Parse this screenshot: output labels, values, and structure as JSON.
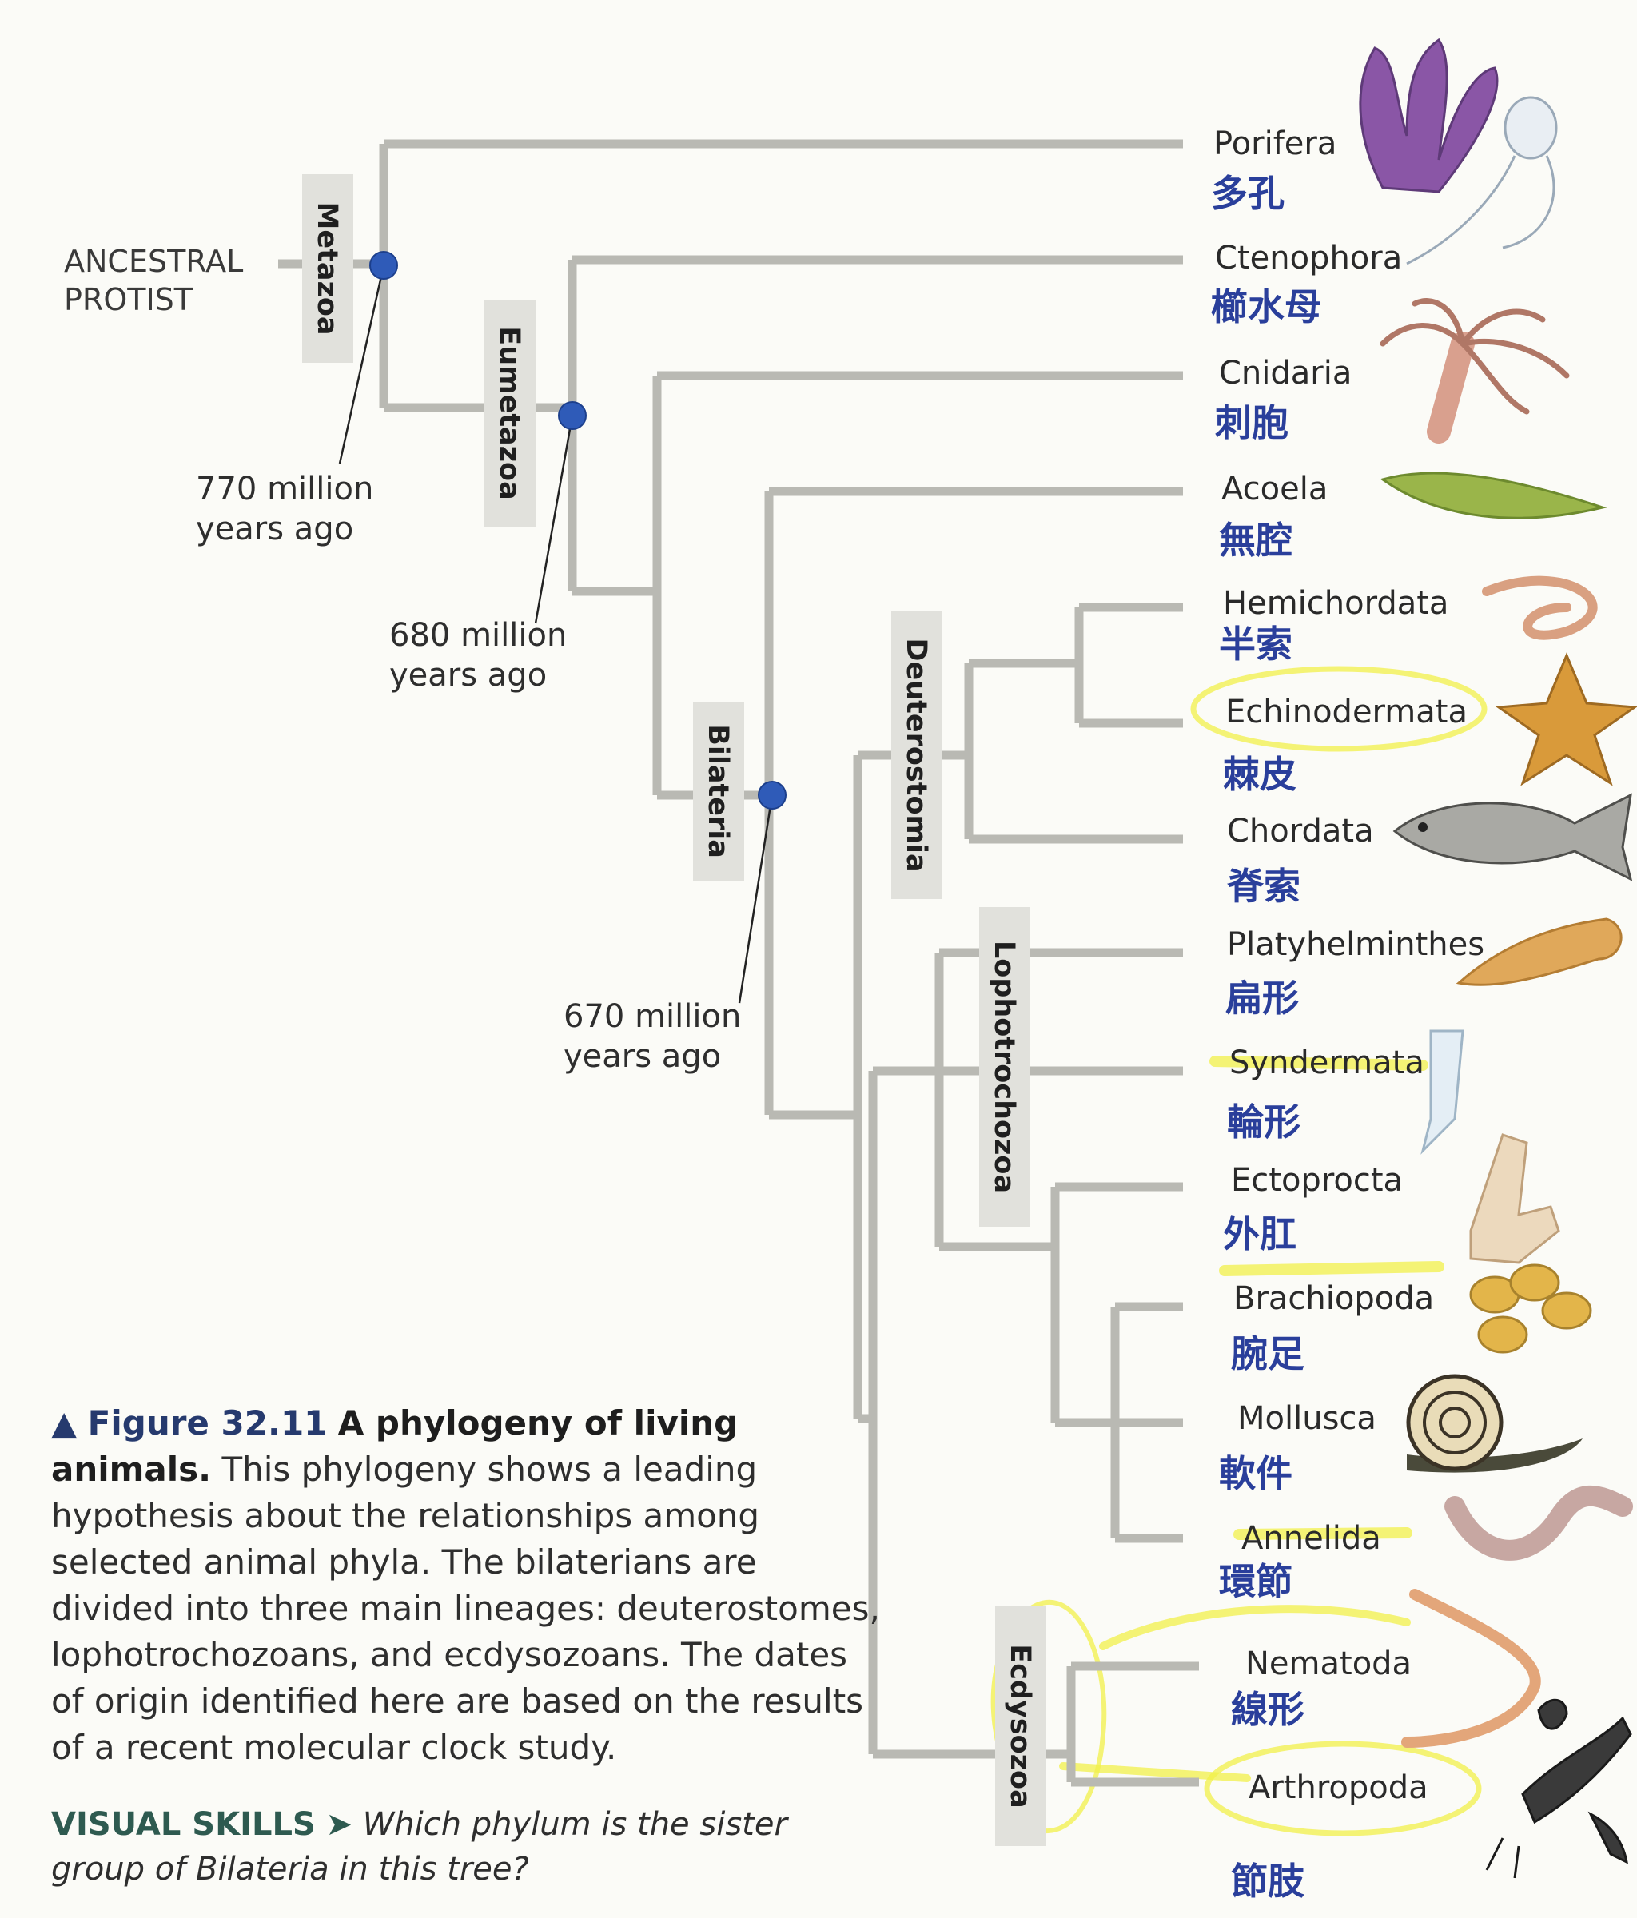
{
  "root_label_lines": [
    "ANCESTRAL",
    "PROTIST"
  ],
  "clades": {
    "metazoa": "Metazoa",
    "eumetazoa": "Eumetazoa",
    "bilateria": "Bilateria",
    "deuterostomia": "Deuterostomia",
    "lophotrochozoa": "Lophotrochozoa",
    "ecdysozoa": "Ecdysozoa"
  },
  "dates": {
    "metazoa": [
      "770 million",
      "years ago"
    ],
    "eumetazoa": [
      "680 million",
      "years ago"
    ],
    "bilateria": [
      "670 million",
      "years ago"
    ]
  },
  "phyla": [
    {
      "name": "Porifera",
      "note": "多孔"
    },
    {
      "name": "Ctenophora",
      "note": "櫛水母"
    },
    {
      "name": "Cnidaria",
      "note": "刺胞"
    },
    {
      "name": "Acoela",
      "note": "無腔"
    },
    {
      "name": "Hemichordata",
      "note": "半索"
    },
    {
      "name": "Echinodermata",
      "note": "棘皮"
    },
    {
      "name": "Chordata",
      "note": "脊索"
    },
    {
      "name": "Platyhelminthes",
      "note": "扁形"
    },
    {
      "name": "Syndermata",
      "note": "輪形"
    },
    {
      "name": "Ectoprocta",
      "note": "外肛"
    },
    {
      "name": "Brachiopoda",
      "note": "腕足"
    },
    {
      "name": "Mollusca",
      "note": "軟件"
    },
    {
      "name": "Annelida",
      "note": "環節"
    },
    {
      "name": "Nematoda",
      "note": "線形"
    },
    {
      "name": "Arthropoda",
      "note": "節肢"
    }
  ],
  "caption": {
    "lead": "Figure 32.11",
    "title": "A phylogeny of living animals.",
    "body": "This phylogeny shows a leading hypothesis about the relationships among selected animal phyla. The bilaterians are divided into three main lineages: deuterostomes, lophotrochozoans, and ecdysozoans. The dates of origin identified here are based on the results of a recent molecular clock study."
  },
  "visual_skills": {
    "label": "VISUAL SKILLS",
    "question": "Which phylum is the sister group of Bilateria in this tree?"
  },
  "colors": {
    "branch": "#b9b9b3",
    "node": "#2f5bb8",
    "label_box": "#e1e1dc",
    "note_ink": "#2a3f9b",
    "highlighter": "#f2f04a"
  }
}
